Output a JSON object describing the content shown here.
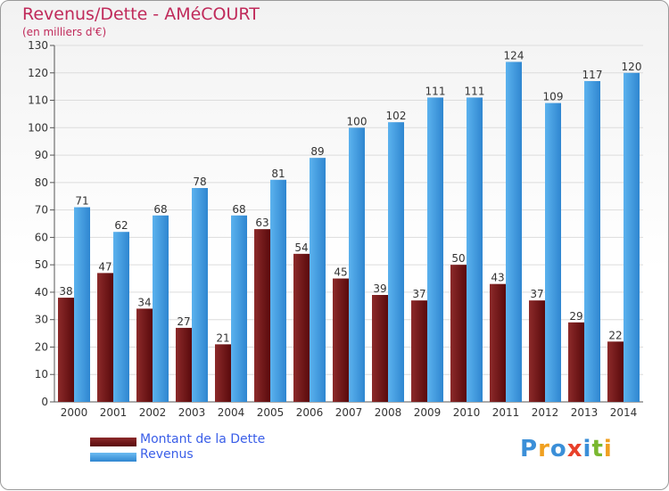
{
  "header": {
    "title": "Revenus/Dette - AMéCOURT",
    "subtitle": "(en milliers d'€)"
  },
  "legend": {
    "debt_label": "Montant de la Dette",
    "revenue_label": "Revenus"
  },
  "logo": {
    "text": "Proxiti"
  },
  "colors": {
    "debt": "#6b0d10",
    "debt_light": "#8c2a2a",
    "revenue": "#2f89d4",
    "revenue_light": "#5bb2ee",
    "title": "#c02a5a",
    "legend_text": "#3a5ee8"
  },
  "chart_data": {
    "type": "bar",
    "title": "Revenus/Dette - AMéCOURT",
    "subtitle": "(en milliers d'€)",
    "categories": [
      "2000",
      "2001",
      "2002",
      "2003",
      "2004",
      "2005",
      "2006",
      "2007",
      "2008",
      "2009",
      "2010",
      "2011",
      "2012",
      "2013",
      "2014"
    ],
    "series": [
      {
        "name": "Montant de la Dette",
        "values": [
          38,
          47,
          34,
          27,
          21,
          63,
          54,
          45,
          39,
          37,
          50,
          43,
          37,
          29,
          22
        ]
      },
      {
        "name": "Revenus",
        "values": [
          71,
          62,
          68,
          78,
          68,
          81,
          89,
          100,
          102,
          111,
          111,
          124,
          109,
          117,
          120
        ]
      }
    ],
    "ylim": [
      0,
      130
    ],
    "yticks": [
      0,
      10,
      20,
      30,
      40,
      50,
      60,
      70,
      80,
      90,
      100,
      110,
      120,
      130
    ],
    "grid": true,
    "legend_position": "bottom-left"
  }
}
